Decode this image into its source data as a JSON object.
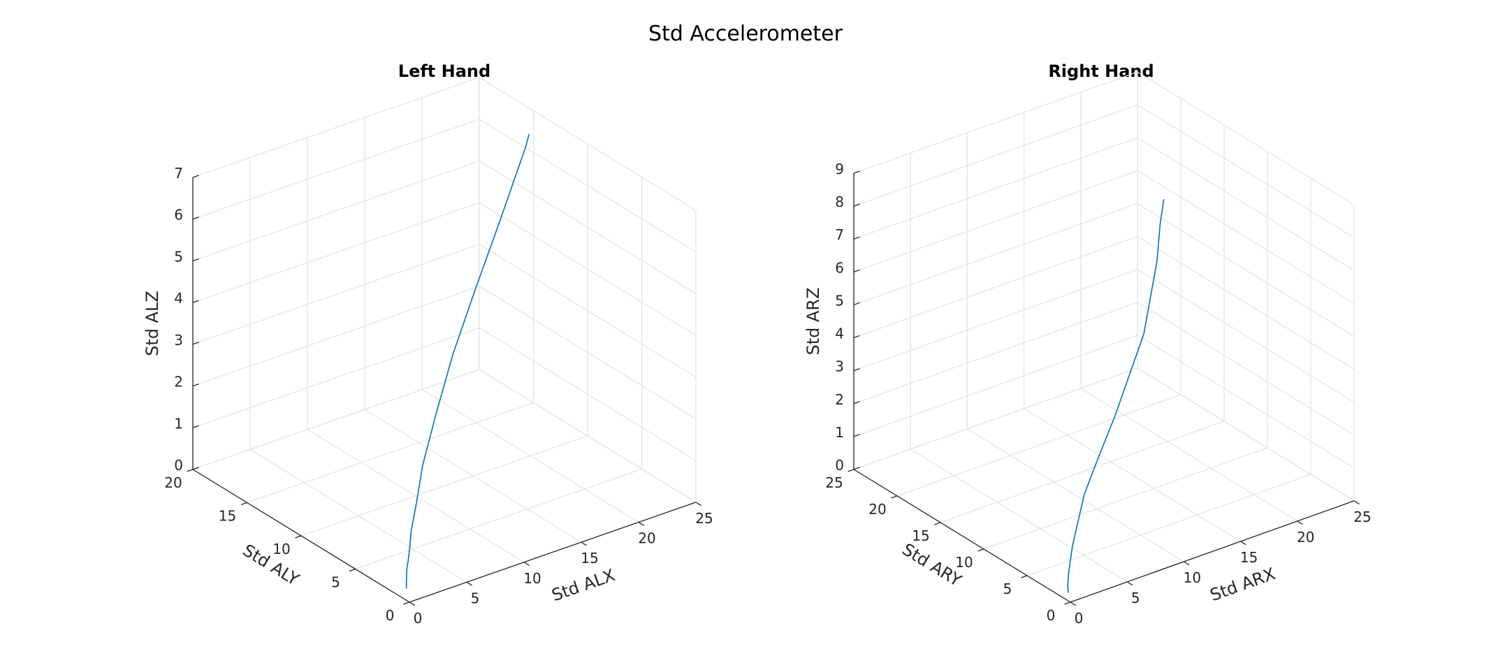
{
  "figure": {
    "title": "Std Accelerometer"
  },
  "chart_data": [
    {
      "type": "line",
      "title": "Left Hand",
      "xlabel": "Std ALX",
      "ylabel": "Std ALY",
      "zlabel": "Std ALZ",
      "xlim": [
        0,
        25
      ],
      "ylim": [
        0,
        20
      ],
      "zlim": [
        0,
        7
      ],
      "xticks": [
        0,
        5,
        10,
        15,
        20,
        25
      ],
      "yticks": [
        0,
        5,
        10,
        15,
        20
      ],
      "zticks": [
        0,
        1,
        2,
        3,
        4,
        5,
        6,
        7
      ],
      "grid": true,
      "series_color": "#0072BD",
      "x": [
        0.3,
        0.4,
        0.45,
        0.6,
        0.8,
        1.0,
        1.4,
        2.0,
        2.8,
        4.0,
        5.6,
        8.0,
        11.0,
        14.5,
        18.5,
        21.0,
        22.5,
        23.2
      ],
      "y": [
        0.6,
        0.7,
        0.75,
        0.9,
        1.1,
        1.3,
        1.6,
        2.1,
        2.8,
        3.6,
        4.7,
        6.0,
        7.6,
        9.3,
        11.2,
        12.4,
        13.1,
        13.5
      ],
      "z": [
        0.2,
        0.28,
        0.32,
        0.4,
        0.45,
        0.5,
        0.6,
        0.75,
        1.0,
        1.4,
        2.0,
        2.8,
        3.7,
        4.6,
        5.6,
        6.25,
        6.65,
        6.85
      ]
    },
    {
      "type": "line",
      "title": "Right Hand",
      "xlabel": "Std ARX",
      "ylabel": "Std ARY",
      "zlabel": "Std ARZ",
      "xlim": [
        0,
        25
      ],
      "ylim": [
        0,
        25
      ],
      "zlim": [
        0,
        9
      ],
      "xticks": [
        0,
        5,
        10,
        15,
        20,
        25
      ],
      "yticks": [
        0,
        5,
        10,
        15,
        20,
        25
      ],
      "zticks": [
        0,
        1,
        2,
        3,
        4,
        5,
        6,
        7,
        8,
        9
      ],
      "grid": true,
      "series_color": "#0072BD",
      "x": [
        0.2,
        0.45,
        0.9,
        1.5,
        2.4,
        3.6,
        5.2,
        7.5,
        10.0,
        13.8,
        15.5,
        16.0,
        16.4
      ],
      "y": [
        0.5,
        0.9,
        1.4,
        2.0,
        2.9,
        3.9,
        5.2,
        6.6,
        8.0,
        9.6,
        10.3,
        10.6,
        10.7
      ],
      "z": [
        0.18,
        0.3,
        0.5,
        0.7,
        0.95,
        1.3,
        1.8,
        2.4,
        3.1,
        4.9,
        6.8,
        7.8,
        8.5
      ]
    }
  ]
}
